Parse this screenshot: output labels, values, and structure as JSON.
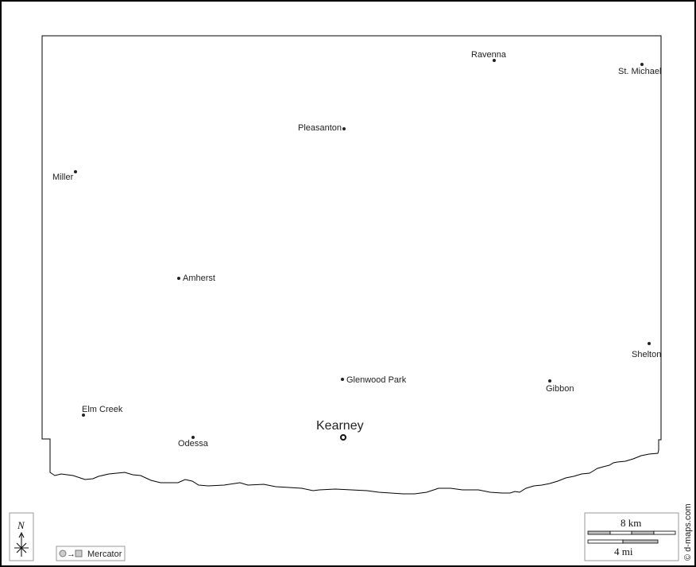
{
  "places": [
    {
      "name": "Ravenna",
      "type": "town"
    },
    {
      "name": "St. Michael",
      "type": "town"
    },
    {
      "name": "Pleasanton",
      "type": "town"
    },
    {
      "name": "Miller",
      "type": "town"
    },
    {
      "name": "Amherst",
      "type": "town"
    },
    {
      "name": "Shelton",
      "type": "town"
    },
    {
      "name": "Glenwood Park",
      "type": "town"
    },
    {
      "name": "Gibbon",
      "type": "town"
    },
    {
      "name": "Elm Creek",
      "type": "town"
    },
    {
      "name": "Odessa",
      "type": "town"
    },
    {
      "name": "Kearney",
      "type": "seat"
    }
  ],
  "compass": {
    "label": "N"
  },
  "projection": {
    "label": "Mercator"
  },
  "scale": {
    "km_label": "8 km",
    "mi_label": "4 mi"
  },
  "credit": "© d-maps.com",
  "colors": {
    "background": "#ffffff",
    "line": "#000000",
    "scale_fill": "#c0c0c0"
  }
}
